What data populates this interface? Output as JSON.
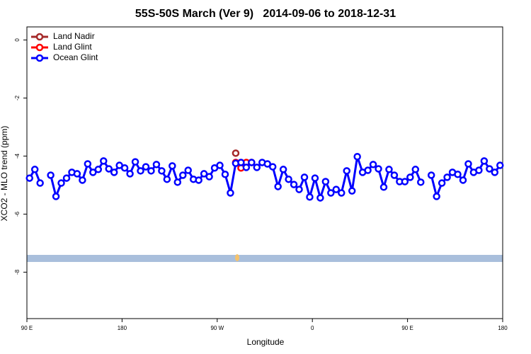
{
  "chart_data": {
    "type": "line",
    "title": "55S-50S March (Ver 9)   2014-09-06 to 2018-12-31",
    "xlabel": "Longitude",
    "ylabel": "XCO2 - MLO trend (ppm)",
    "xlim": [
      90,
      540
    ],
    "xticks": [
      {
        "value": 90,
        "label": "90 E"
      },
      180,
      {
        "value": 270,
        "label": "90 W"
      },
      {
        "value": 360,
        "label": "0"
      },
      {
        "value": 450,
        "label": "90 E"
      },
      {
        "value": 540,
        "label": "180"
      }
    ],
    "ylim": [
      -9.6,
      0.45
    ],
    "yticks": [
      0,
      -2,
      -4,
      -6,
      -8
    ],
    "legend": "upper left",
    "series": [
      {
        "name": "Land Nadir",
        "color": "#a52a2a",
        "x": [
          287.5
        ],
        "values": [
          -3.9
        ]
      },
      {
        "name": "Land Glint",
        "color": "#ff0000",
        "x": [
          287.5,
          292.5,
          297.5,
          302.5
        ],
        "values": [
          -4.22,
          -4.41,
          -4.22,
          -4.22
        ]
      },
      {
        "name": "Ocean Glint",
        "color": "#0000ff",
        "x": [
          92.5,
          97.5,
          102.5,
          107.5,
          112.5,
          117.5,
          122.5,
          127.5,
          132.5,
          137.5,
          142.5,
          147.5,
          152.5,
          157.5,
          162.5,
          167.5,
          172.5,
          177.5,
          182.5,
          187.5,
          192.5,
          197.5,
          202.5,
          207.5,
          212.5,
          217.5,
          222.5,
          227.5,
          232.5,
          237.5,
          242.5,
          247.5,
          252.5,
          257.5,
          262.5,
          267.5,
          272.5,
          277.5,
          282.5,
          287.5,
          292.5,
          297.5,
          302.5,
          307.5,
          312.5,
          317.5,
          322.5,
          327.5,
          332.5,
          337.5,
          342.5,
          347.5,
          352.5,
          357.5,
          362.5,
          367.5,
          372.5,
          377.5,
          382.5,
          387.5,
          392.5,
          397.5,
          402.5,
          407.5,
          412.5,
          417.5,
          422.5,
          427.5,
          432.5,
          437.5,
          442.5,
          447.5,
          452.5,
          457.5,
          462.5,
          467.5,
          472.5,
          477.5,
          482.5,
          487.5,
          492.5,
          497.5,
          502.5,
          507.5,
          512.5,
          517.5,
          522.5,
          527.5,
          532.5,
          537.5
        ],
        "values": [
          -4.76,
          -4.46,
          -4.93,
          null,
          -4.66,
          -5.39,
          -4.93,
          -4.76,
          -4.56,
          -4.61,
          -4.83,
          -4.27,
          -4.56,
          -4.46,
          -4.17,
          -4.44,
          -4.56,
          -4.32,
          -4.41,
          -4.61,
          -4.2,
          -4.51,
          -4.37,
          -4.51,
          -4.29,
          -4.51,
          -4.8,
          -4.34,
          -4.9,
          -4.66,
          -4.49,
          -4.8,
          -4.83,
          -4.61,
          -4.71,
          -4.41,
          -4.32,
          -4.63,
          -5.27,
          -4.25,
          -4.22,
          -4.39,
          -4.22,
          -4.39,
          -4.22,
          -4.27,
          -4.37,
          -5.05,
          -4.46,
          -4.8,
          -4.98,
          -5.15,
          -4.73,
          -5.41,
          -4.76,
          -5.44,
          -4.88,
          -5.27,
          -5.15,
          -5.27,
          -4.51,
          -5.2,
          -4.02,
          -4.56,
          -4.49,
          -4.29,
          -4.44,
          -5.07,
          -4.46,
          -4.66,
          -4.88,
          -4.88,
          -4.73,
          -4.46,
          -4.9,
          null,
          -4.66,
          -5.39,
          -4.93,
          -4.73,
          -4.56,
          -4.63,
          -4.83,
          -4.27,
          -4.56,
          -4.49,
          -4.17,
          -4.44,
          -4.56,
          -4.32
        ]
      }
    ]
  }
}
